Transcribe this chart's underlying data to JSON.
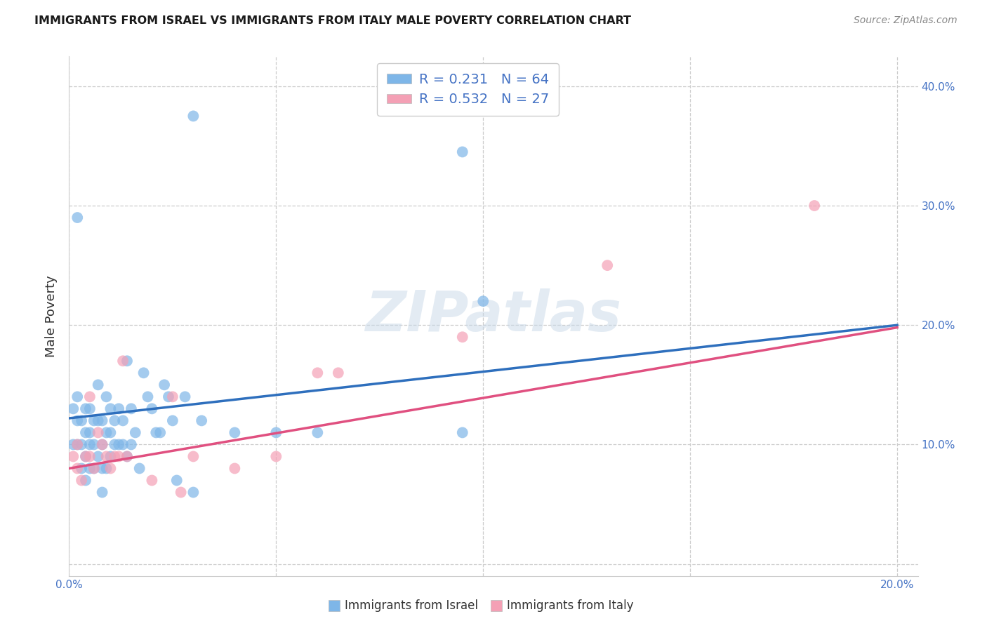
{
  "title": "IMMIGRANTS FROM ISRAEL VS IMMIGRANTS FROM ITALY MALE POVERTY CORRELATION CHART",
  "source": "Source: ZipAtlas.com",
  "ylabel": "Male Poverty",
  "xlim": [
    0.0,
    0.205
  ],
  "ylim": [
    -0.01,
    0.425
  ],
  "israel_R": 0.231,
  "israel_N": 64,
  "italy_R": 0.532,
  "italy_N": 27,
  "israel_color": "#7EB6E8",
  "italy_color": "#F4A0B5",
  "israel_line_color": "#2E6FBD",
  "italy_line_color": "#E05080",
  "legend_label_israel": "Immigrants from Israel",
  "legend_label_italy": "Immigrants from Italy",
  "watermark": "ZIPatlas",
  "grid_color": "#cccccc",
  "yticks": [
    0.0,
    0.1,
    0.2,
    0.3,
    0.4
  ],
  "xticks": [
    0.0,
    0.05,
    0.1,
    0.15,
    0.2
  ],
  "israel_x": [
    0.001,
    0.001,
    0.002,
    0.002,
    0.002,
    0.003,
    0.003,
    0.003,
    0.004,
    0.004,
    0.004,
    0.004,
    0.005,
    0.005,
    0.005,
    0.005,
    0.006,
    0.006,
    0.006,
    0.007,
    0.007,
    0.007,
    0.008,
    0.008,
    0.008,
    0.009,
    0.009,
    0.009,
    0.01,
    0.01,
    0.01,
    0.011,
    0.011,
    0.012,
    0.012,
    0.013,
    0.013,
    0.014,
    0.014,
    0.015,
    0.015,
    0.016,
    0.017,
    0.018,
    0.019,
    0.02,
    0.021,
    0.022,
    0.023,
    0.024,
    0.025,
    0.026,
    0.028,
    0.03,
    0.032,
    0.04,
    0.05,
    0.06,
    0.095,
    0.1,
    0.03,
    0.095,
    0.002,
    0.008
  ],
  "israel_y": [
    0.13,
    0.1,
    0.14,
    0.12,
    0.1,
    0.12,
    0.1,
    0.08,
    0.13,
    0.11,
    0.09,
    0.07,
    0.13,
    0.11,
    0.1,
    0.08,
    0.12,
    0.1,
    0.08,
    0.15,
    0.12,
    0.09,
    0.12,
    0.1,
    0.08,
    0.14,
    0.11,
    0.08,
    0.13,
    0.11,
    0.09,
    0.12,
    0.1,
    0.13,
    0.1,
    0.12,
    0.1,
    0.17,
    0.09,
    0.13,
    0.1,
    0.11,
    0.08,
    0.16,
    0.14,
    0.13,
    0.11,
    0.11,
    0.15,
    0.14,
    0.12,
    0.07,
    0.14,
    0.06,
    0.12,
    0.11,
    0.11,
    0.11,
    0.11,
    0.22,
    0.375,
    0.345,
    0.29,
    0.06
  ],
  "italy_x": [
    0.001,
    0.002,
    0.002,
    0.003,
    0.004,
    0.005,
    0.005,
    0.006,
    0.007,
    0.008,
    0.009,
    0.01,
    0.011,
    0.012,
    0.013,
    0.014,
    0.02,
    0.025,
    0.027,
    0.03,
    0.04,
    0.05,
    0.06,
    0.065,
    0.095,
    0.13,
    0.18
  ],
  "italy_y": [
    0.09,
    0.1,
    0.08,
    0.07,
    0.09,
    0.14,
    0.09,
    0.08,
    0.11,
    0.1,
    0.09,
    0.08,
    0.09,
    0.09,
    0.17,
    0.09,
    0.07,
    0.14,
    0.06,
    0.09,
    0.08,
    0.09,
    0.16,
    0.16,
    0.19,
    0.25,
    0.3
  ],
  "israel_line_start_y": 0.122,
  "israel_line_end_y": 0.2,
  "italy_line_start_y": 0.08,
  "italy_line_end_y": 0.198
}
